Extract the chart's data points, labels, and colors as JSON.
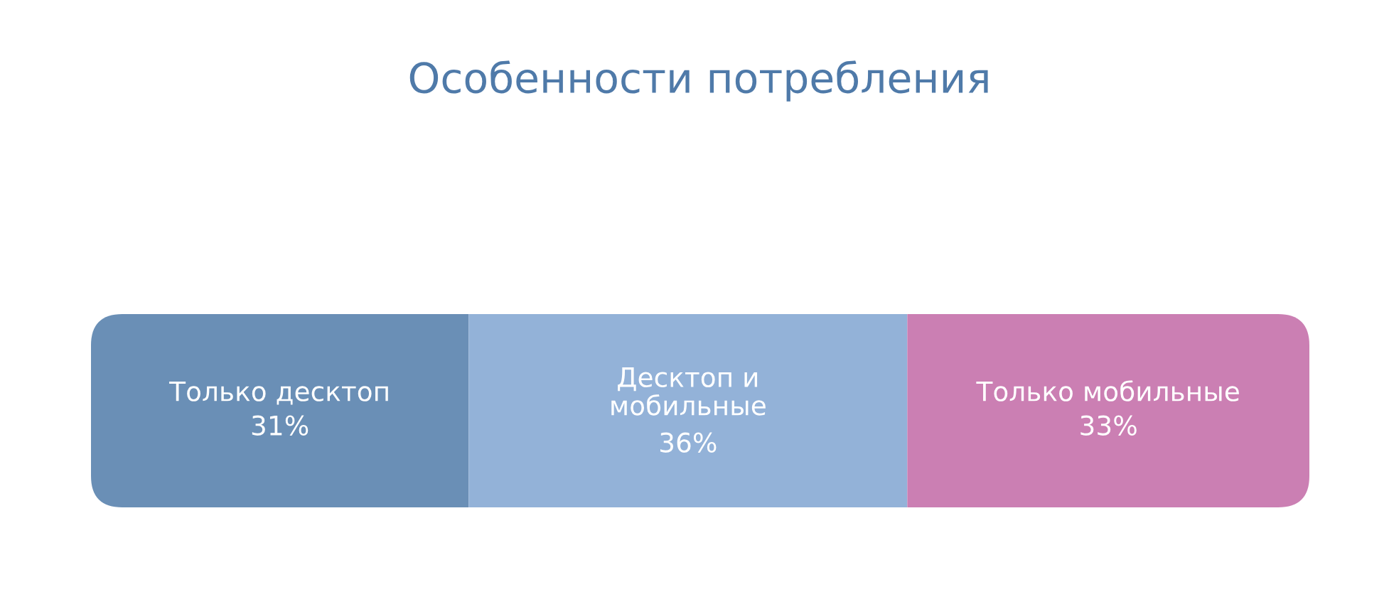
{
  "chart_data": {
    "type": "bar",
    "orientation": "horizontal",
    "stacked": true,
    "title": "Особенности потребления",
    "categories": [
      null
    ],
    "series": [
      {
        "name": "Только десктоп",
        "color": "#6a8fb6",
        "values": [
          31
        ],
        "value_labels": [
          "31%"
        ]
      },
      {
        "name": "Десктоп и\nмобильные",
        "color": "#93b2d8",
        "values": [
          36
        ],
        "value_labels": [
          "36%"
        ]
      },
      {
        "name": "Только мобильные",
        "color": "#cb7fb3",
        "values": [
          33
        ],
        "value_labels": [
          "33%"
        ]
      }
    ]
  }
}
